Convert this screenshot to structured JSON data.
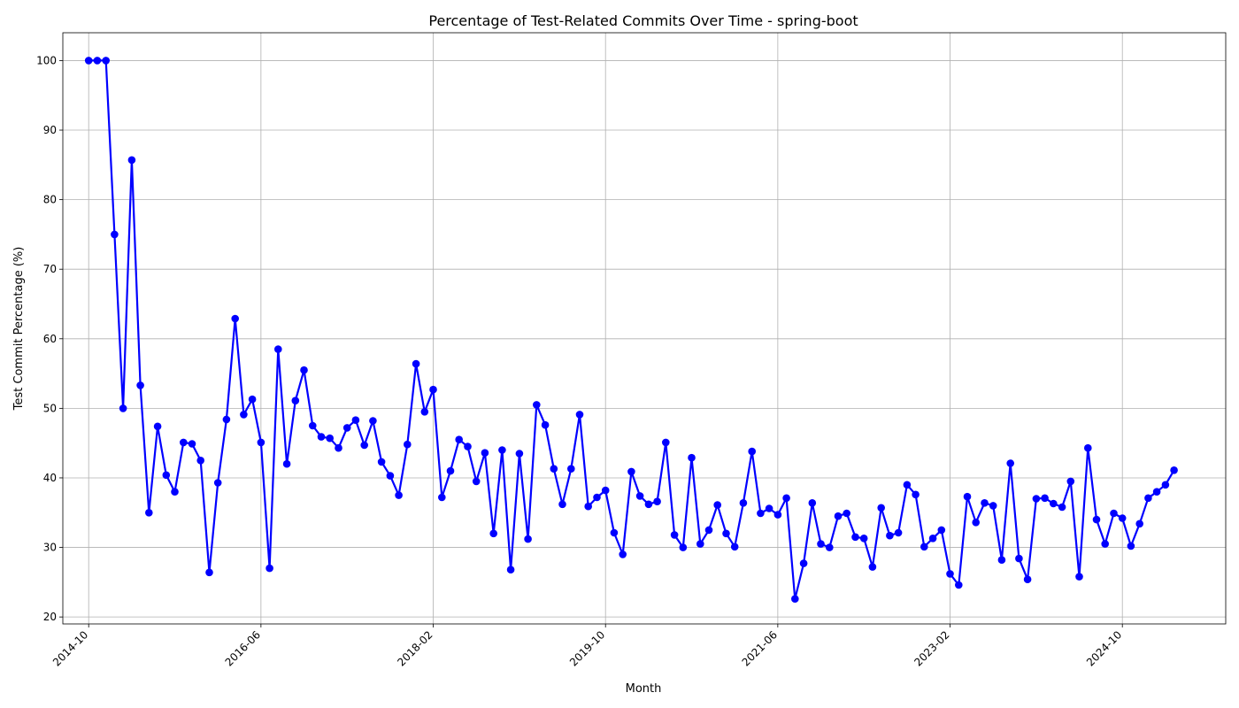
{
  "chart_data": {
    "type": "line",
    "title": "Percentage of Test-Related Commits Over Time - spring-boot",
    "xlabel": "Month",
    "ylabel": "Test Commit Percentage (%)",
    "grid": true,
    "line_color": "#0000ff",
    "marker": "circle",
    "xlim": [
      "2014-07",
      "2025-10"
    ],
    "ylim": [
      19,
      104
    ],
    "x_ticks": [
      "2014-10",
      "2016-06",
      "2018-02",
      "2019-10",
      "2021-06",
      "2023-02",
      "2024-10"
    ],
    "y_ticks": [
      20,
      30,
      40,
      50,
      60,
      70,
      80,
      90,
      100
    ],
    "series": [
      {
        "x": [
          "2014-10",
          "2014-11",
          "2014-12",
          "2015-01",
          "2015-02",
          "2015-03",
          "2015-04",
          "2015-05",
          "2015-06",
          "2015-07",
          "2015-08",
          "2015-09",
          "2015-10",
          "2015-11",
          "2015-12",
          "2016-01",
          "2016-02",
          "2016-03",
          "2016-04",
          "2016-05",
          "2016-06",
          "2016-07",
          "2016-08",
          "2016-09",
          "2016-10",
          "2016-11",
          "2016-12",
          "2017-01",
          "2017-02",
          "2017-03",
          "2017-04",
          "2017-05",
          "2017-06",
          "2017-07",
          "2017-08",
          "2017-09",
          "2017-10",
          "2017-11",
          "2017-12",
          "2018-01",
          "2018-02",
          "2018-03",
          "2018-04",
          "2018-05",
          "2018-06",
          "2018-07",
          "2018-08",
          "2018-09",
          "2018-10",
          "2018-11",
          "2018-12",
          "2019-01",
          "2019-02",
          "2019-03",
          "2019-04",
          "2019-05",
          "2019-06",
          "2019-07",
          "2019-08",
          "2019-09",
          "2019-10",
          "2019-11",
          "2019-12",
          "2020-01",
          "2020-02",
          "2020-03",
          "2020-04",
          "2020-05",
          "2020-06",
          "2020-07",
          "2020-08",
          "2020-09",
          "2020-10",
          "2020-11",
          "2020-12",
          "2021-01",
          "2021-02",
          "2021-03",
          "2021-04",
          "2021-05",
          "2021-06",
          "2021-07",
          "2021-08",
          "2021-09",
          "2021-10",
          "2021-11",
          "2021-12",
          "2022-01",
          "2022-02",
          "2022-03",
          "2022-04",
          "2022-05",
          "2022-06",
          "2022-07",
          "2022-08",
          "2022-09",
          "2022-10",
          "2022-11",
          "2022-12",
          "2023-01",
          "2023-02",
          "2023-03",
          "2023-04",
          "2023-05",
          "2023-06",
          "2023-07",
          "2023-08",
          "2023-09",
          "2023-10",
          "2023-11",
          "2023-12",
          "2024-01",
          "2024-02",
          "2024-03",
          "2024-04",
          "2024-05",
          "2024-06",
          "2024-07",
          "2024-08",
          "2024-09",
          "2024-10",
          "2024-11",
          "2024-12",
          "2025-01",
          "2025-02",
          "2025-03",
          "2025-04"
        ],
        "values": [
          100,
          100,
          100,
          75,
          50,
          85.7,
          53.3,
          35,
          47.4,
          40.4,
          38,
          45.1,
          44.9,
          42.5,
          26.4,
          39.3,
          48.4,
          62.9,
          49.1,
          51.3,
          45.1,
          27,
          58.5,
          42,
          51.1,
          55.5,
          47.5,
          45.9,
          45.7,
          44.3,
          47.2,
          48.3,
          44.7,
          48.2,
          42.3,
          40.3,
          37.5,
          44.8,
          56.4,
          49.5,
          52.7,
          37.2,
          41,
          45.5,
          44.5,
          39.5,
          43.6,
          32,
          44,
          26.8,
          43.5,
          31.2,
          50.5,
          47.6,
          41.3,
          36.2,
          41.3,
          49.1,
          35.9,
          37.2,
          38.2,
          32.1,
          29,
          40.9,
          37.4,
          36.2,
          36.6,
          45.1,
          31.8,
          30,
          42.9,
          30.5,
          32.5,
          36.1,
          32,
          30.1,
          36.4,
          43.8,
          34.9,
          35.6,
          34.7,
          37.1,
          22.6,
          27.7,
          36.4,
          30.5,
          30,
          34.5,
          34.9,
          31.5,
          31.3,
          27.2,
          35.7,
          31.7,
          32.1,
          39,
          37.6,
          30.1,
          31.3,
          32.5,
          26.2,
          24.6,
          37.3,
          33.6,
          36.4,
          36,
          28.2,
          42.1,
          28.4,
          25.4,
          37,
          37.1,
          36.3,
          35.8,
          39.5,
          25.8,
          44.3,
          34,
          30.5,
          34.9,
          34.2,
          30.2,
          33.4,
          37.1,
          38,
          39,
          41.1
        ]
      }
    ]
  }
}
